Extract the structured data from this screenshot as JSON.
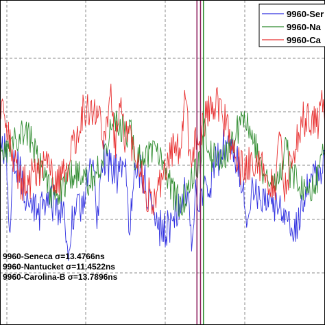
{
  "chart_data": {
    "type": "line",
    "title": "",
    "xlabel": "",
    "ylabel": "",
    "grid": true,
    "grid_style": "dashed",
    "legend_placement": "top-right",
    "series": [
      {
        "name": "9960-Seneca",
        "legend_label": "9960-Ser",
        "color": "#3030e0",
        "mean": 0.58,
        "amplitude": 0.09,
        "noise": 0.06,
        "seed": 11,
        "excursions": [
          [
            0.03,
            0.82
          ],
          [
            0.21,
            0.84
          ],
          [
            0.3,
            0.76
          ],
          [
            0.4,
            0.8
          ],
          [
            0.59,
            0.78
          ],
          [
            0.76,
            0.72
          ],
          [
            0.83,
            0.62
          ]
        ]
      },
      {
        "name": "9960-Nantucket",
        "legend_label": "9960-Na",
        "color": "#2e8b2e",
        "mean": 0.5,
        "amplitude": 0.08,
        "noise": 0.05,
        "seed": 23,
        "excursions": [
          [
            0.4,
            0.35
          ],
          [
            0.63,
            0.34
          ],
          [
            0.88,
            0.36
          ]
        ]
      },
      {
        "name": "9960-Carolina-B",
        "legend_label": "9960-Ca",
        "color": "#e83030",
        "mean": 0.46,
        "amplitude": 0.1,
        "noise": 0.06,
        "seed": 37,
        "excursions": [
          [
            0.34,
            0.24
          ],
          [
            0.37,
            0.27
          ],
          [
            0.57,
            0.21
          ],
          [
            0.86,
            0.3
          ],
          [
            0.99,
            0.26
          ]
        ]
      }
    ],
    "vertical_lines": [
      {
        "x": 0.606,
        "color": "#8b1a5a"
      },
      {
        "x": 0.617,
        "color": "#8b1a5a"
      },
      {
        "x": 0.626,
        "color": "#2e8b2e"
      }
    ],
    "annotations": [
      {
        "series": "9960-Seneca",
        "text": "9960-Seneca σ=13.4766ns"
      },
      {
        "series": "9960-Nantucket",
        "text": "9960-Nantucket σ=11.4522ns"
      },
      {
        "series": "9960-Carolina-B",
        "text": "9960-Carolina-B σ=13.7896ns"
      }
    ]
  }
}
